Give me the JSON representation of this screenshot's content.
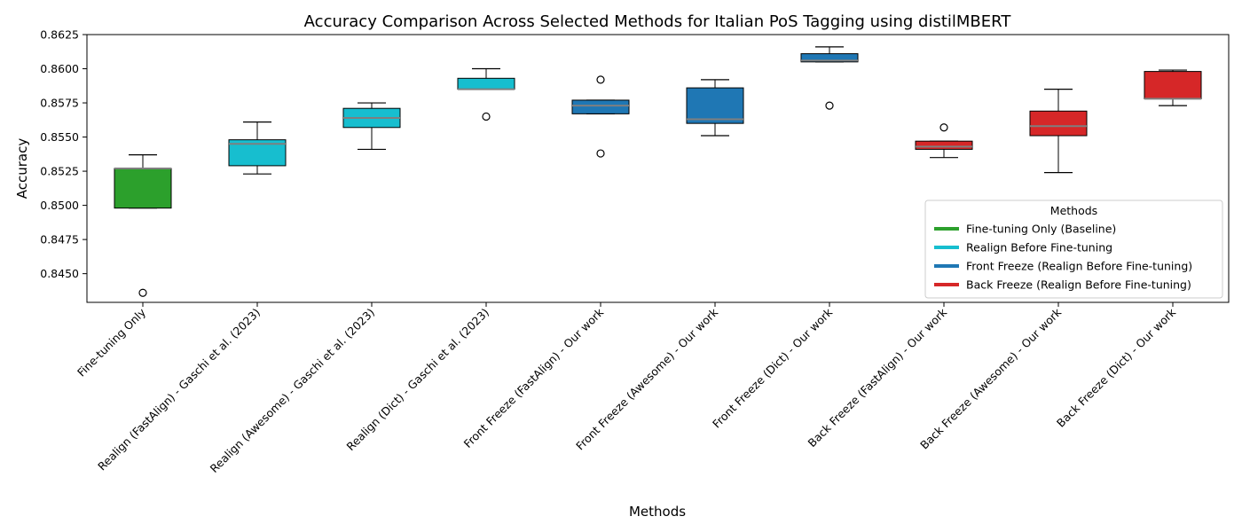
{
  "chart_data": {
    "type": "box",
    "title": "Accuracy Comparison Across Selected Methods for Italian PoS Tagging using distilMBERT",
    "xlabel": "Methods",
    "ylabel": "Accuracy",
    "ylim": [
      0.8429,
      0.8625
    ],
    "yticks": [
      0.845,
      0.8475,
      0.85,
      0.8525,
      0.855,
      0.8575,
      0.86,
      0.8625
    ],
    "ytick_labels": [
      "0.8450",
      "0.8475",
      "0.8500",
      "0.8525",
      "0.8550",
      "0.8575",
      "0.8600",
      "0.8625"
    ],
    "grid": false,
    "legend": {
      "title": "Methods",
      "placement": "lower-right",
      "items": [
        {
          "label": "Fine-tuning Only (Baseline)",
          "color": "#2ca02c"
        },
        {
          "label": "Realign Before Fine-tuning",
          "color": "#17becf"
        },
        {
          "label": "Front Freeze (Realign Before Fine-tuning)",
          "color": "#1f77b4"
        },
        {
          "label": "Back Freeze (Realign Before Fine-tuning)",
          "color": "#d62728"
        }
      ]
    },
    "boxes": [
      {
        "category": "Fine-tuning Only",
        "color": "#2ca02c",
        "whisker_low": 0.8498,
        "q1": 0.8498,
        "median": 0.8527,
        "q3": 0.8527,
        "whisker_high": 0.8537,
        "outliers": [
          0.8436
        ]
      },
      {
        "category": "Realign (FastAlign) - Gaschi et al. (2023)",
        "color": "#17becf",
        "whisker_low": 0.8523,
        "q1": 0.8529,
        "median": 0.8545,
        "q3": 0.8548,
        "whisker_high": 0.8561,
        "outliers": []
      },
      {
        "category": "Realign (Awesome) - Gaschi et al. (2023)",
        "color": "#17becf",
        "whisker_low": 0.8541,
        "q1": 0.8557,
        "median": 0.8564,
        "q3": 0.8571,
        "whisker_high": 0.8575,
        "outliers": []
      },
      {
        "category": "Realign (Dict) - Gaschi et al. (2023)",
        "color": "#17becf",
        "whisker_low": 0.8585,
        "q1": 0.8585,
        "median": 0.8585,
        "q3": 0.8593,
        "whisker_high": 0.86,
        "outliers": [
          0.8565
        ]
      },
      {
        "category": "Front Freeze (FastAlign) - Our work",
        "color": "#1f77b4",
        "whisker_low": 0.8567,
        "q1": 0.8567,
        "median": 0.8573,
        "q3": 0.8577,
        "whisker_high": 0.8577,
        "outliers": [
          0.8592,
          0.8538
        ]
      },
      {
        "category": "Front Freeze (Awesome) - Our work",
        "color": "#1f77b4",
        "whisker_low": 0.8551,
        "q1": 0.856,
        "median": 0.8563,
        "q3": 0.8586,
        "whisker_high": 0.8592,
        "outliers": []
      },
      {
        "category": "Front Freeze (Dict) - Our work",
        "color": "#1f77b4",
        "whisker_low": 0.8605,
        "q1": 0.8605,
        "median": 0.8606,
        "q3": 0.8611,
        "whisker_high": 0.8616,
        "outliers": [
          0.8573
        ]
      },
      {
        "category": "Back Freeze (FastAlign) - Our work",
        "color": "#d62728",
        "whisker_low": 0.8535,
        "q1": 0.8541,
        "median": 0.8543,
        "q3": 0.8547,
        "whisker_high": 0.8547,
        "outliers": [
          0.8557
        ]
      },
      {
        "category": "Back Freeze (Awesome) - Our work",
        "color": "#d62728",
        "whisker_low": 0.8524,
        "q1": 0.8551,
        "median": 0.8558,
        "q3": 0.8569,
        "whisker_high": 0.8585,
        "outliers": []
      },
      {
        "category": "Back Freeze (Dict) - Our work",
        "color": "#d62728",
        "whisker_low": 0.8573,
        "q1": 0.8578,
        "median": 0.8578,
        "q3": 0.8598,
        "whisker_high": 0.8599,
        "outliers": []
      }
    ]
  }
}
